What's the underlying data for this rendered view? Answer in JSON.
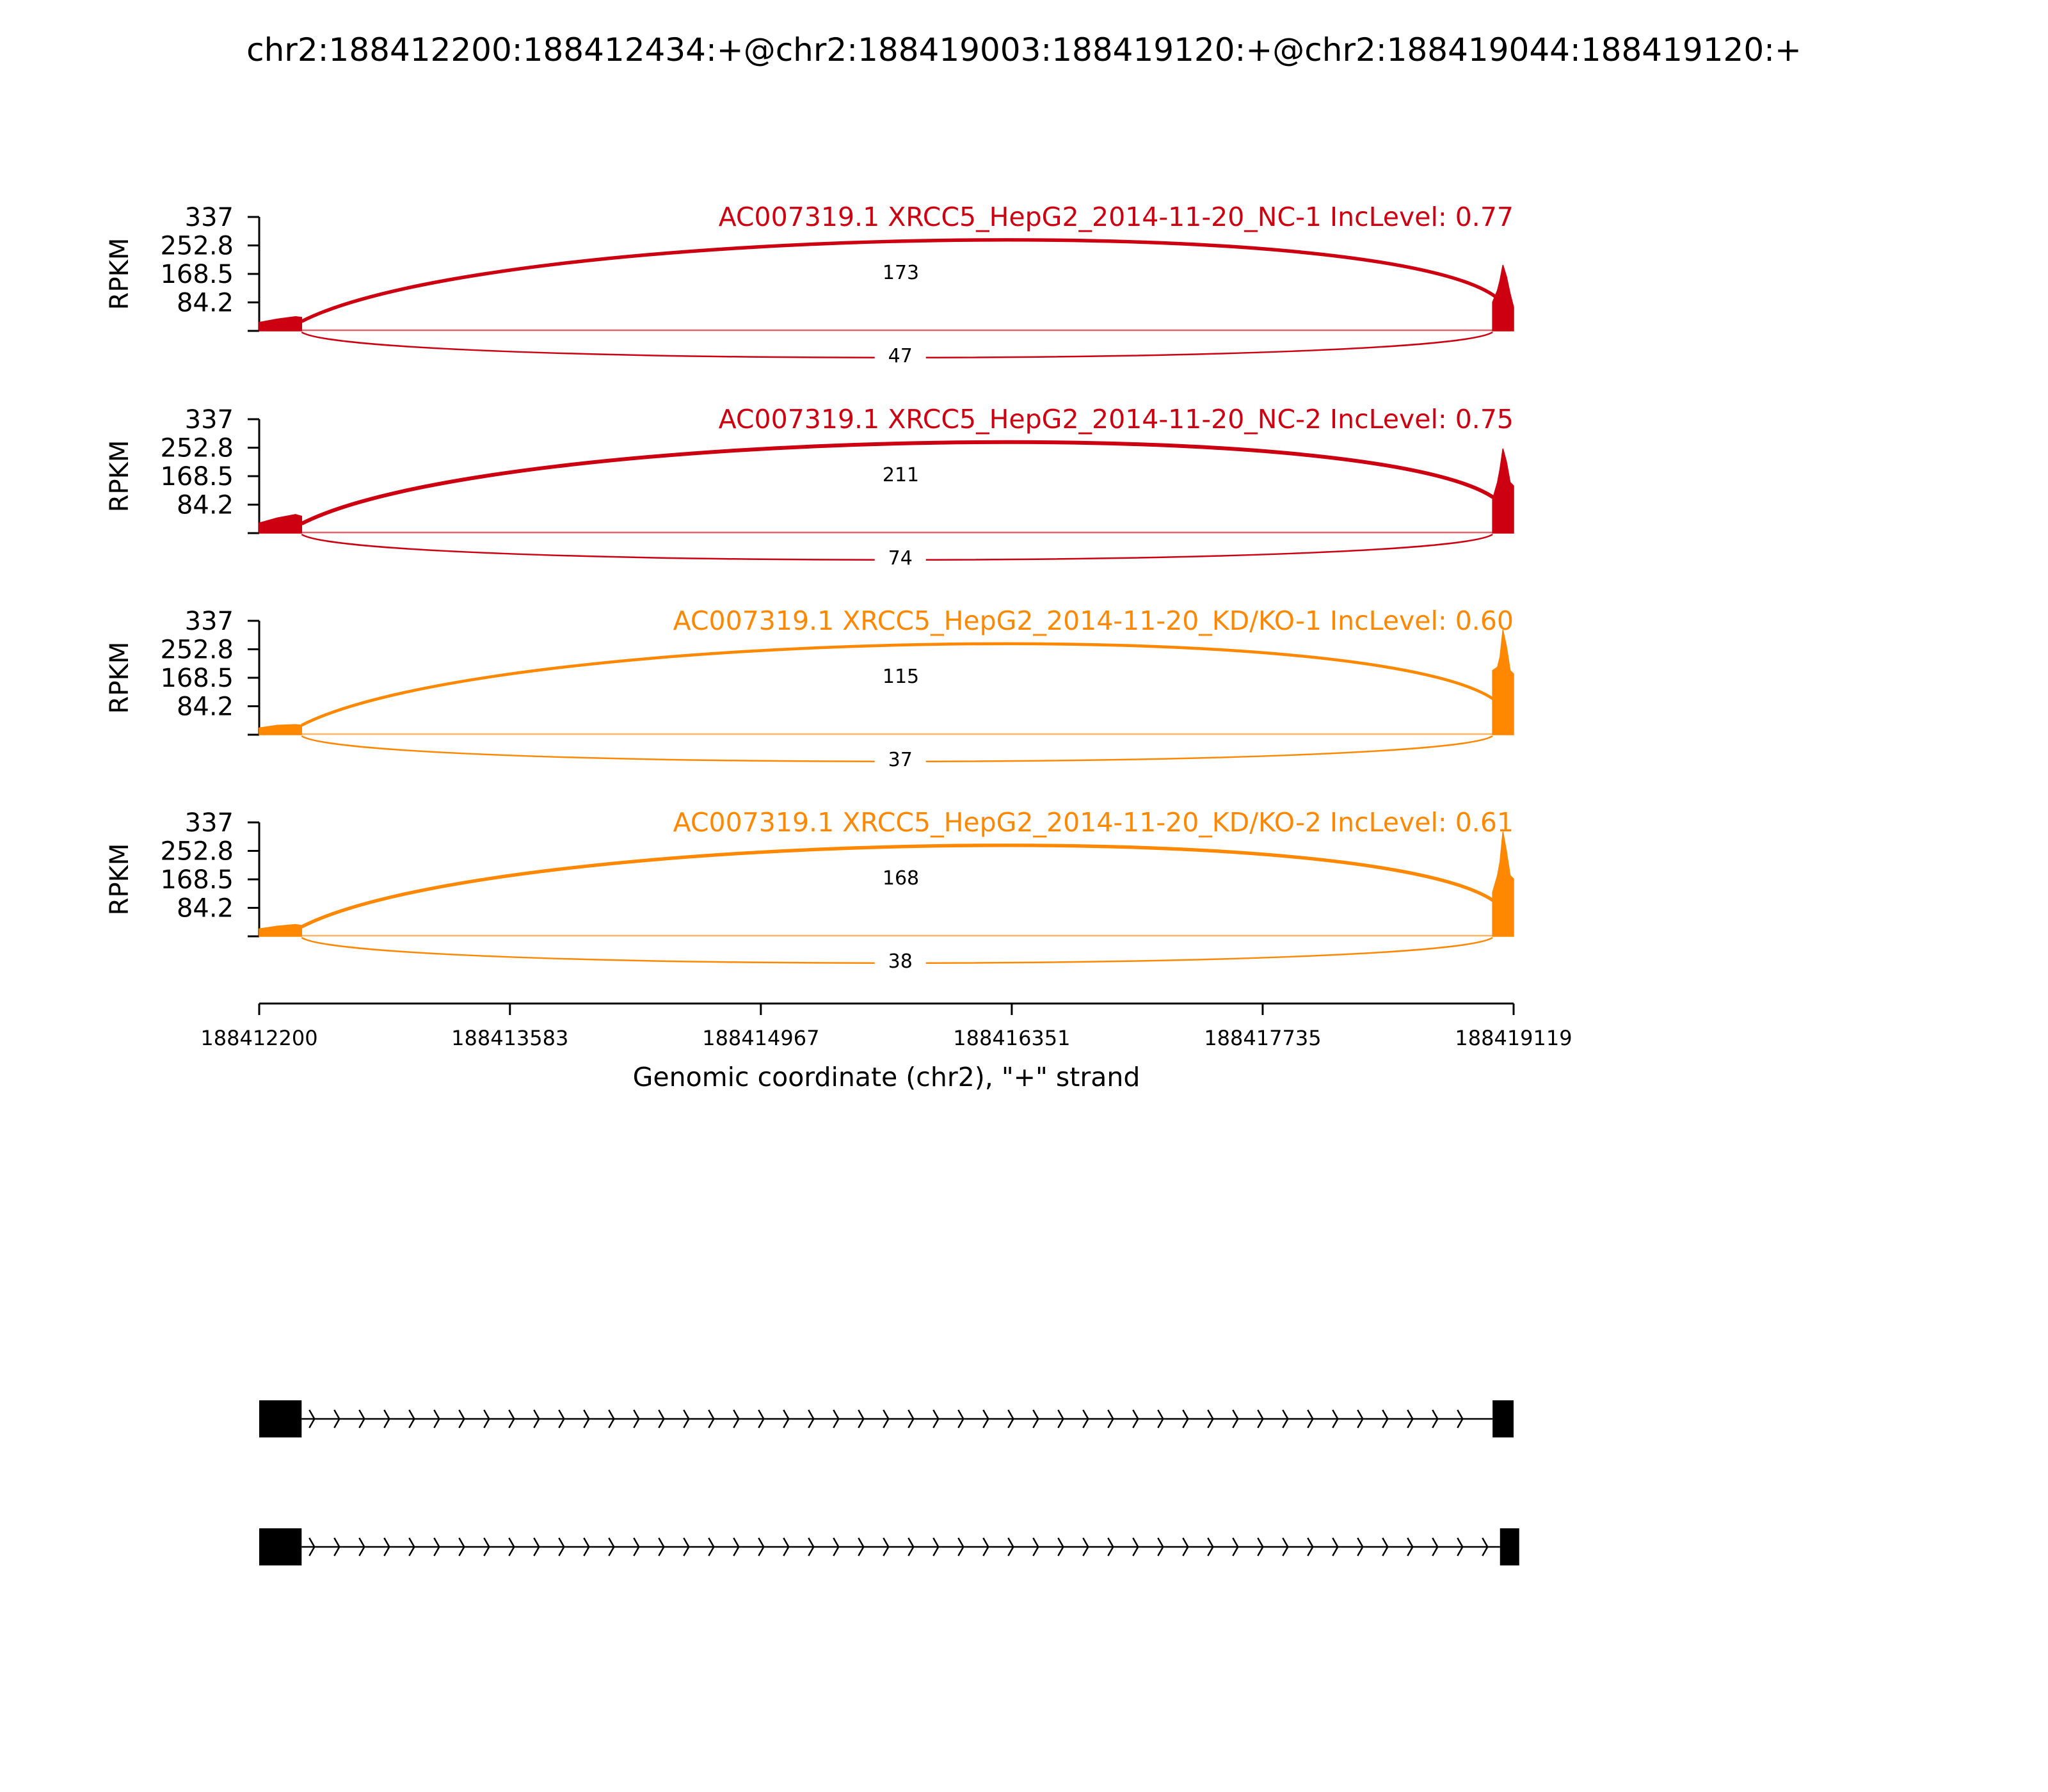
{
  "chart_data": {
    "type": "area",
    "title": "chr2:188412200:188412434:+@chr2:188419003:188419120:+@chr2:188419044:188419120:+",
    "ylabel": "RPKM",
    "xlabel": "Genomic coordinate (chr2), \"+\" strand",
    "xlim": [
      188412200,
      188419119
    ],
    "ylim": [
      0,
      337
    ],
    "x_ticks": [
      "188412200",
      "188413583",
      "188414967",
      "188416351",
      "188417735",
      "188419119"
    ],
    "x_tick_values": [
      188412200,
      188413583,
      188414967,
      188416351,
      188417735,
      188419119
    ],
    "y_ticks": [
      "337",
      "252.8",
      "168.5",
      "84.2"
    ],
    "y_tick_values": [
      337,
      252.8,
      168.5,
      84.2
    ],
    "tracks": [
      {
        "label": "AC007319.1 XRCC5_HepG2_2014-11-20_NC-1 IncLevel: 0.77",
        "color": "#cc0011",
        "junctions": [
          {
            "start": 188412434,
            "end": 188419044,
            "count": "173",
            "side": "above"
          },
          {
            "start": 188412434,
            "end": 188419003,
            "count": "47",
            "side": "below"
          }
        ],
        "coverage": [
          {
            "x": 188412200,
            "y": 25
          },
          {
            "x": 188412300,
            "y": 35
          },
          {
            "x": 188412400,
            "y": 42
          },
          {
            "x": 188412434,
            "y": 40
          },
          {
            "x": 188419003,
            "y": 85
          },
          {
            "x": 188419030,
            "y": 120
          },
          {
            "x": 188419044,
            "y": 150
          },
          {
            "x": 188419060,
            "y": 195
          },
          {
            "x": 188419080,
            "y": 160
          },
          {
            "x": 188419100,
            "y": 110
          },
          {
            "x": 188419119,
            "y": 70
          }
        ]
      },
      {
        "label": "AC007319.1 XRCC5_HepG2_2014-11-20_NC-2 IncLevel: 0.75",
        "color": "#cc0011",
        "junctions": [
          {
            "start": 188412434,
            "end": 188419044,
            "count": "211",
            "side": "above"
          },
          {
            "start": 188412434,
            "end": 188419003,
            "count": "74",
            "side": "below"
          }
        ],
        "coverage": [
          {
            "x": 188412200,
            "y": 30
          },
          {
            "x": 188412300,
            "y": 45
          },
          {
            "x": 188412400,
            "y": 55
          },
          {
            "x": 188412434,
            "y": 50
          },
          {
            "x": 188419003,
            "y": 100
          },
          {
            "x": 188419030,
            "y": 150
          },
          {
            "x": 188419044,
            "y": 190
          },
          {
            "x": 188419060,
            "y": 250
          },
          {
            "x": 188419080,
            "y": 210
          },
          {
            "x": 188419100,
            "y": 150
          },
          {
            "x": 188419119,
            "y": 140
          }
        ]
      },
      {
        "label": "AC007319.1 XRCC5_HepG2_2014-11-20_KD/KO-1 IncLevel: 0.60",
        "color": "#ff8800",
        "junctions": [
          {
            "start": 188412434,
            "end": 188419044,
            "count": "115",
            "side": "above"
          },
          {
            "start": 188412434,
            "end": 188419003,
            "count": "37",
            "side": "below"
          }
        ],
        "coverage": [
          {
            "x": 188412200,
            "y": 20
          },
          {
            "x": 188412300,
            "y": 28
          },
          {
            "x": 188412400,
            "y": 30
          },
          {
            "x": 188412434,
            "y": 28
          },
          {
            "x": 188419003,
            "y": 190
          },
          {
            "x": 188419030,
            "y": 200
          },
          {
            "x": 188419044,
            "y": 230
          },
          {
            "x": 188419060,
            "y": 310
          },
          {
            "x": 188419080,
            "y": 260
          },
          {
            "x": 188419100,
            "y": 190
          },
          {
            "x": 188419119,
            "y": 180
          }
        ]
      },
      {
        "label": "AC007319.1 XRCC5_HepG2_2014-11-20_KD/KO-2 IncLevel: 0.61",
        "color": "#ff8800",
        "junctions": [
          {
            "start": 188412434,
            "end": 188419044,
            "count": "168",
            "side": "above"
          },
          {
            "start": 188412434,
            "end": 188419003,
            "count": "38",
            "side": "below"
          }
        ],
        "coverage": [
          {
            "x": 188412200,
            "y": 22
          },
          {
            "x": 188412300,
            "y": 30
          },
          {
            "x": 188412400,
            "y": 35
          },
          {
            "x": 188412434,
            "y": 32
          },
          {
            "x": 188419003,
            "y": 130
          },
          {
            "x": 188419030,
            "y": 180
          },
          {
            "x": 188419044,
            "y": 220
          },
          {
            "x": 188419060,
            "y": 310
          },
          {
            "x": 188419080,
            "y": 250
          },
          {
            "x": 188419100,
            "y": 180
          },
          {
            "x": 188419119,
            "y": 170
          }
        ]
      }
    ],
    "isoforms": [
      {
        "exons": [
          [
            188412200,
            188412434
          ],
          [
            188419003,
            188419119
          ]
        ]
      },
      {
        "exons": [
          [
            188412200,
            188412434
          ],
          [
            188419044,
            188419119
          ]
        ]
      }
    ]
  }
}
